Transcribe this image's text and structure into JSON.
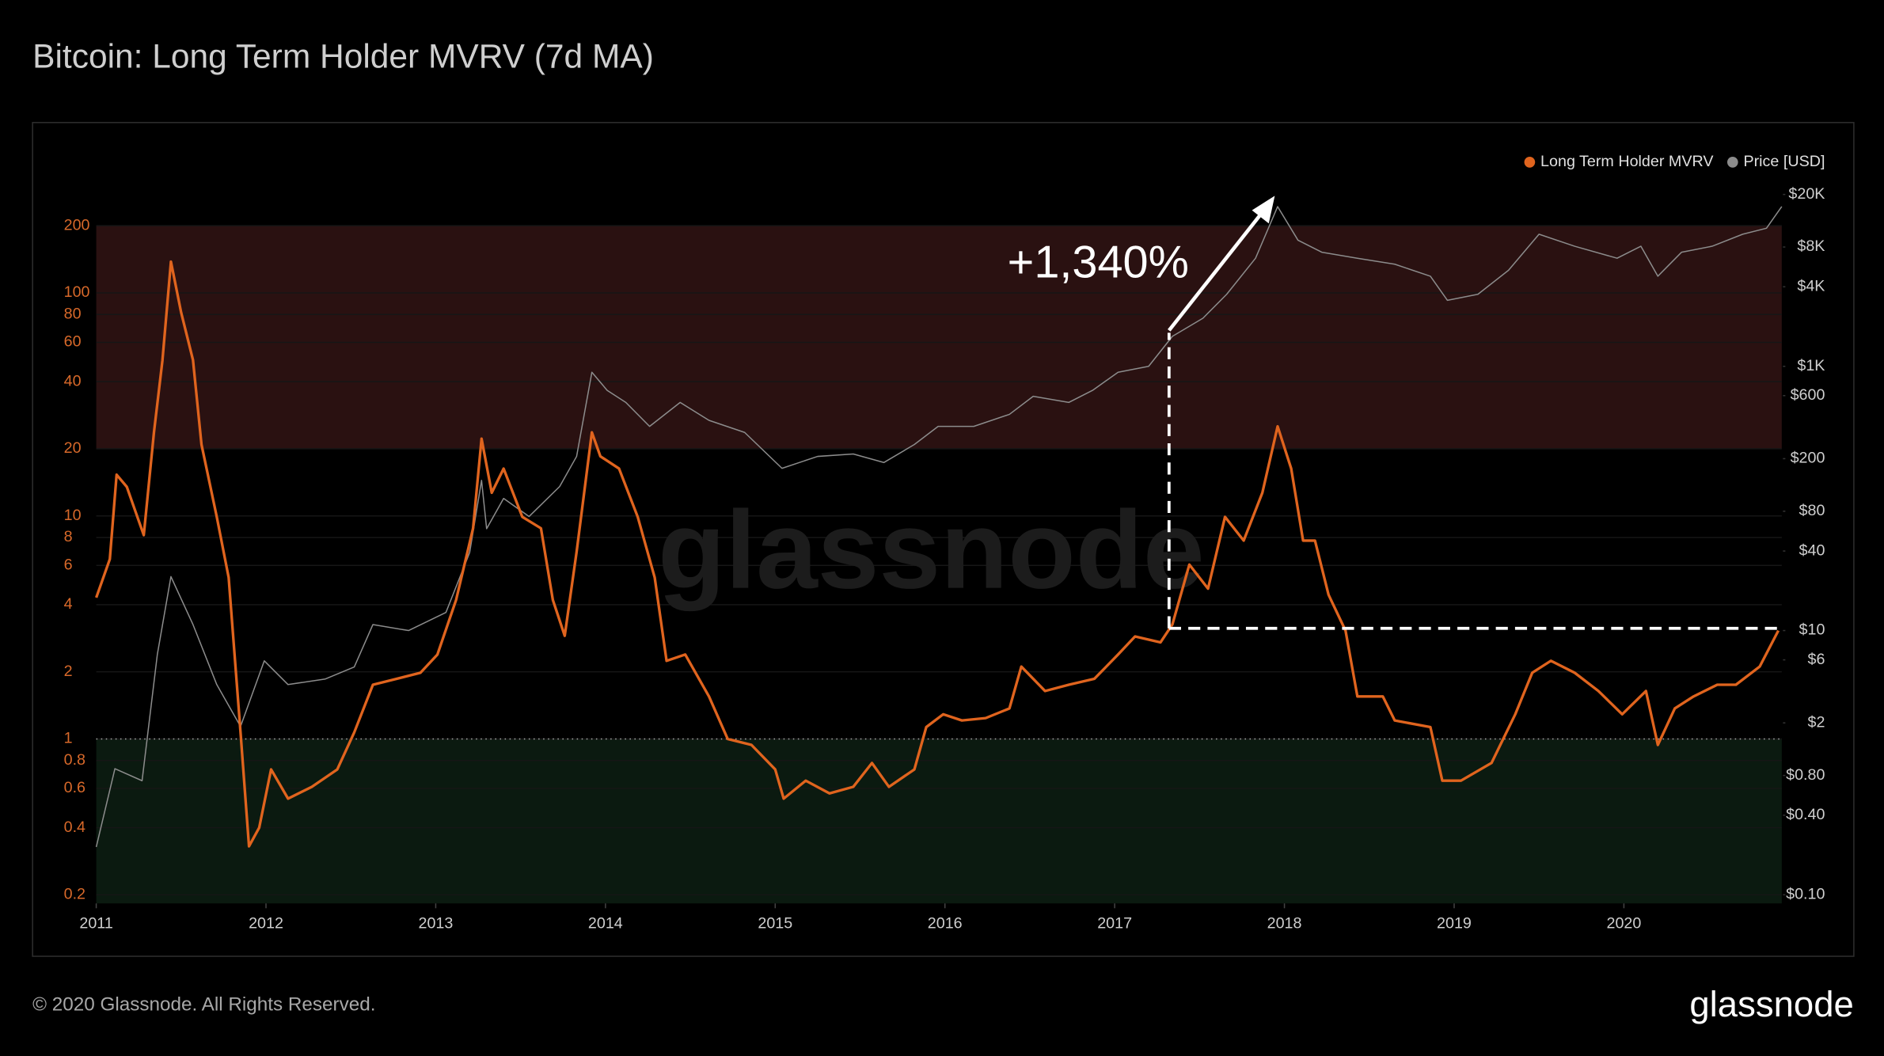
{
  "chart_data": {
    "type": "line",
    "title": "Bitcoin: Long Term Holder MVRV (7d MA)",
    "copyright": "© 2020 Glassnode. All Rights Reserved.",
    "brand": "glassnode",
    "watermark": "glassnode",
    "annotation": "+1,340%",
    "log_scale": true,
    "grid": true,
    "legend": "top-right",
    "reference_line": 1,
    "zones": [
      {
        "from": 20,
        "to": 200,
        "color": "#2a1111"
      },
      {
        "to": 1,
        "color": "#0b1a10"
      }
    ],
    "xlim": [
      2011,
      2020.93
    ],
    "xticks": [
      2011,
      2012,
      2013,
      2014,
      2015,
      2016,
      2017,
      2018,
      2019,
      2020
    ],
    "ylim": [
      0.183,
      376
    ],
    "yticks": [
      0.2,
      0.4,
      0.6,
      0.8,
      1,
      2,
      4,
      6,
      8,
      10,
      20,
      40,
      60,
      80,
      100,
      200
    ],
    "y2lim": [
      0.086,
      33650
    ],
    "y2ticks": [
      {
        "value": 0.1,
        "label": "$0.10"
      },
      {
        "value": 0.4,
        "label": "$0.40"
      },
      {
        "value": 0.8,
        "label": "$0.80"
      },
      {
        "value": 2,
        "label": "$2"
      },
      {
        "value": 6,
        "label": "$6"
      },
      {
        "value": 10,
        "label": "$10"
      },
      {
        "value": 40,
        "label": "$40"
      },
      {
        "value": 80,
        "label": "$80"
      },
      {
        "value": 200,
        "label": "$200"
      },
      {
        "value": 600,
        "label": "$600"
      },
      {
        "value": 1000,
        "label": "$1K"
      },
      {
        "value": 4000,
        "label": "$4K"
      },
      {
        "value": 8000,
        "label": "$8K"
      },
      {
        "value": 20000,
        "label": "$20K"
      }
    ],
    "series": [
      {
        "name": "Long Term Holder MVRV",
        "color": "#e0641e",
        "x": [
          2011.0,
          2011.08,
          2011.12,
          2011.18,
          2011.28,
          2011.34,
          2011.39,
          2011.44,
          2011.5,
          2011.57,
          2011.62,
          2011.71,
          2011.78,
          2011.85,
          2011.9,
          2011.96,
          2012.03,
          2012.13,
          2012.27,
          2012.42,
          2012.52,
          2012.63,
          2012.77,
          2012.91,
          2013.01,
          2013.12,
          2013.22,
          2013.27,
          2013.33,
          2013.4,
          2013.51,
          2013.62,
          2013.69,
          2013.76,
          2013.83,
          2013.92,
          2013.97,
          2014.08,
          2014.19,
          2014.29,
          2014.36,
          2014.47,
          2014.61,
          2014.72,
          2014.86,
          2015.0,
          2015.05,
          2015.18,
          2015.32,
          2015.46,
          2015.57,
          2015.67,
          2015.82,
          2015.89,
          2015.99,
          2016.1,
          2016.24,
          2016.38,
          2016.45,
          2016.59,
          2016.73,
          2016.88,
          2017.02,
          2017.12,
          2017.27,
          2017.34,
          2017.44,
          2017.55,
          2017.65,
          2017.76,
          2017.87,
          2017.96,
          2018.04,
          2018.11,
          2018.18,
          2018.26,
          2018.36,
          2018.43,
          2018.58,
          2018.65,
          2018.86,
          2018.93,
          2019.04,
          2019.22,
          2019.36,
          2019.46,
          2019.57,
          2019.71,
          2019.85,
          2019.99,
          2020.13,
          2020.2,
          2020.3,
          2020.41,
          2020.55,
          2020.66,
          2020.8,
          2020.91
        ],
        "values": [
          4.3,
          6.4,
          15.3,
          13.5,
          8.2,
          23.7,
          49.8,
          138,
          81.8,
          50,
          20.9,
          9.9,
          5.3,
          1.07,
          0.33,
          0.4,
          0.73,
          0.54,
          0.61,
          0.73,
          1.07,
          1.75,
          1.86,
          1.98,
          2.39,
          4.2,
          8.8,
          22.2,
          12.7,
          16.3,
          9.9,
          8.8,
          4.2,
          2.9,
          6.9,
          23.7,
          18.5,
          16.3,
          9.9,
          5.3,
          2.24,
          2.39,
          1.55,
          1.0,
          0.94,
          0.73,
          0.54,
          0.65,
          0.57,
          0.61,
          0.78,
          0.61,
          0.73,
          1.13,
          1.29,
          1.21,
          1.24,
          1.37,
          2.11,
          1.64,
          1.75,
          1.86,
          2.39,
          2.88,
          2.71,
          3.26,
          6.05,
          4.72,
          9.9,
          7.75,
          12.7,
          25.2,
          16.3,
          7.75,
          7.75,
          4.43,
          3.06,
          1.55,
          1.55,
          1.21,
          1.13,
          0.65,
          0.65,
          0.78,
          1.29,
          1.98,
          2.24,
          1.98,
          1.64,
          1.29,
          1.64,
          0.94,
          1.37,
          1.55,
          1.75,
          1.75,
          2.11,
          3.06
        ]
      },
      {
        "name": "Price [USD]",
        "color": "#8c8c8c",
        "axis": "y2",
        "x": [
          2011.0,
          2011.11,
          2011.27,
          2011.36,
          2011.44,
          2011.57,
          2011.71,
          2011.85,
          2011.99,
          2012.13,
          2012.35,
          2012.52,
          2012.63,
          2012.84,
          2013.06,
          2013.2,
          2013.27,
          2013.3,
          2013.4,
          2013.55,
          2013.73,
          2013.83,
          2013.92,
          2014.01,
          2014.12,
          2014.26,
          2014.44,
          2014.61,
          2014.82,
          2015.04,
          2015.25,
          2015.46,
          2015.64,
          2015.82,
          2015.96,
          2016.17,
          2016.38,
          2016.52,
          2016.73,
          2016.87,
          2017.02,
          2017.2,
          2017.34,
          2017.52,
          2017.66,
          2017.83,
          2017.96,
          2018.08,
          2018.22,
          2018.43,
          2018.65,
          2018.86,
          2018.96,
          2019.14,
          2019.32,
          2019.5,
          2019.71,
          2019.96,
          2020.1,
          2020.2,
          2020.34,
          2020.52,
          2020.7,
          2020.84,
          2020.93
        ],
        "values": [
          0.23,
          0.9,
          0.73,
          6.6,
          25.6,
          11.1,
          3.9,
          1.88,
          5.9,
          3.9,
          4.3,
          5.3,
          11.1,
          10,
          13.7,
          39,
          137,
          59,
          100,
          73,
          123,
          208,
          902,
          658,
          533,
          351,
          533,
          390,
          316,
          169,
          208,
          217,
          187,
          256,
          351,
          351,
          433,
          593,
          533,
          658,
          902,
          1000,
          1687,
          2312,
          3510,
          6580,
          16180,
          9010,
          7310,
          6580,
          5930,
          4810,
          3160,
          3510,
          5330,
          10000,
          8110,
          6580,
          8110,
          4810,
          7310,
          8110,
          10000,
          11100,
          16180
        ]
      }
    ]
  }
}
